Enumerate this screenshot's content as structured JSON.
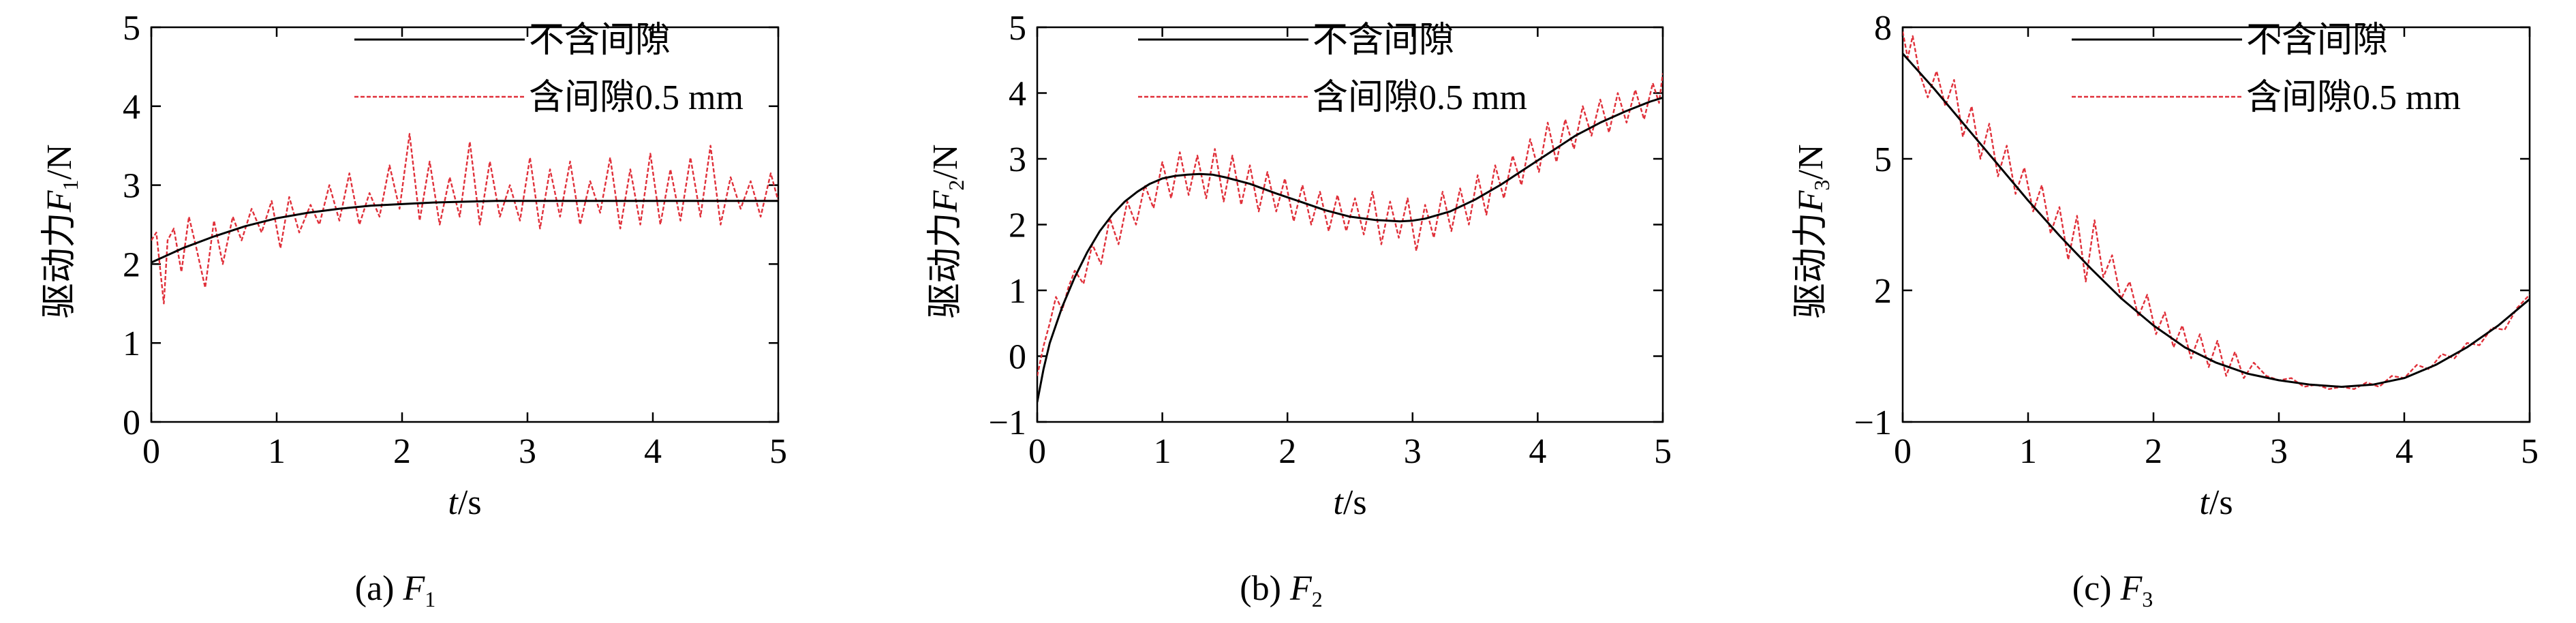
{
  "chart_data": [
    {
      "type": "line",
      "caption": {
        "prefix": "(a)",
        "var": "F",
        "sub": "1"
      },
      "ylabel": {
        "prefix": "驱动力",
        "var": "F",
        "sub": "1",
        "unit": "/N"
      },
      "xlabel": {
        "var": "t",
        "unit": "/s"
      },
      "xlim": [
        0,
        5
      ],
      "ylim": [
        0,
        5
      ],
      "xticks": [
        0,
        1,
        2,
        3,
        4,
        5
      ],
      "xtick_labels": [
        "0",
        "1",
        "2",
        "3",
        "4",
        "5"
      ],
      "yticks": [
        0,
        1,
        2,
        3,
        4,
        5
      ],
      "ytick_labels": [
        "0",
        "1",
        "2",
        "3",
        "4",
        "5"
      ],
      "legend": {
        "entries": [
          "不含间隙",
          "含间隙0.5 mm"
        ]
      },
      "series": [
        {
          "name": "不含间隙",
          "color": "#000000",
          "style": "solid",
          "x": [
            0,
            0.25,
            0.5,
            0.75,
            1,
            1.25,
            1.5,
            1.75,
            2,
            2.25,
            2.5,
            2.75,
            3,
            3.25,
            3.5,
            3.75,
            4,
            4.25,
            4.5,
            4.75,
            5
          ],
          "y": [
            2.02,
            2.2,
            2.35,
            2.48,
            2.58,
            2.65,
            2.7,
            2.74,
            2.76,
            2.78,
            2.79,
            2.8,
            2.8,
            2.8,
            2.8,
            2.8,
            2.8,
            2.8,
            2.8,
            2.8,
            2.8
          ]
        },
        {
          "name": "含间隙0.5 mm",
          "color": "#e0303a",
          "style": "dotted",
          "x": [
            0,
            0.04,
            0.1,
            0.13,
            0.18,
            0.24,
            0.3,
            0.36,
            0.43,
            0.5,
            0.57,
            0.65,
            0.72,
            0.8,
            0.88,
            0.96,
            1.03,
            1.1,
            1.18,
            1.27,
            1.34,
            1.42,
            1.5,
            1.58,
            1.66,
            1.74,
            1.82,
            1.9,
            1.98,
            2.06,
            2.14,
            2.22,
            2.3,
            2.38,
            2.46,
            2.54,
            2.62,
            2.7,
            2.78,
            2.86,
            2.94,
            3.02,
            3.1,
            3.18,
            3.26,
            3.34,
            3.42,
            3.5,
            3.58,
            3.66,
            3.74,
            3.82,
            3.9,
            3.98,
            4.06,
            4.14,
            4.22,
            4.3,
            4.38,
            4.46,
            4.54,
            4.62,
            4.7,
            4.78,
            4.86,
            4.94,
            5
          ],
          "y": [
            2.3,
            2.4,
            1.5,
            2.3,
            2.45,
            1.9,
            2.6,
            2.2,
            1.7,
            2.55,
            2.0,
            2.6,
            2.3,
            2.7,
            2.4,
            2.8,
            2.2,
            2.85,
            2.4,
            2.75,
            2.5,
            3.0,
            2.55,
            3.15,
            2.5,
            2.9,
            2.6,
            3.25,
            2.7,
            3.65,
            2.55,
            3.3,
            2.5,
            3.1,
            2.6,
            3.55,
            2.5,
            3.3,
            2.6,
            3.0,
            2.55,
            3.35,
            2.45,
            3.2,
            2.6,
            3.3,
            2.5,
            3.05,
            2.65,
            3.35,
            2.45,
            3.2,
            2.5,
            3.4,
            2.5,
            3.2,
            2.55,
            3.35,
            2.6,
            3.5,
            2.5,
            3.1,
            2.7,
            3.05,
            2.6,
            3.15,
            2.8
          ]
        }
      ]
    },
    {
      "type": "line",
      "caption": {
        "prefix": "(b)",
        "var": "F",
        "sub": "2"
      },
      "ylabel": {
        "prefix": "驱动力",
        "var": "F",
        "sub": "2",
        "unit": "/N"
      },
      "xlabel": {
        "var": "t",
        "unit": "/s"
      },
      "xlim": [
        0,
        5
      ],
      "ylim": [
        -1,
        5
      ],
      "xticks": [
        0,
        1,
        2,
        3,
        4,
        5
      ],
      "xtick_labels": [
        "0",
        "1",
        "2",
        "3",
        "4",
        "5"
      ],
      "yticks": [
        -1,
        0,
        1,
        2,
        3,
        4,
        5
      ],
      "ytick_labels": [
        "−1",
        "0",
        "1",
        "2",
        "3",
        "4",
        "5"
      ],
      "legend": {
        "entries": [
          "不含间隙",
          "含间隙0.5 mm"
        ]
      },
      "series": [
        {
          "name": "不含间隙",
          "color": "#000000",
          "style": "solid",
          "x": [
            0,
            0.05,
            0.1,
            0.2,
            0.3,
            0.4,
            0.5,
            0.6,
            0.7,
            0.8,
            0.9,
            1.0,
            1.1,
            1.2,
            1.3,
            1.4,
            1.5,
            1.7,
            1.9,
            2.1,
            2.3,
            2.5,
            2.7,
            2.9,
            3.0,
            3.1,
            3.3,
            3.5,
            3.7,
            3.9,
            4.1,
            4.3,
            4.5,
            4.7,
            4.9,
            5.0
          ],
          "y": [
            -0.7,
            -0.2,
            0.2,
            0.75,
            1.2,
            1.58,
            1.9,
            2.15,
            2.35,
            2.5,
            2.62,
            2.7,
            2.74,
            2.76,
            2.77,
            2.76,
            2.72,
            2.62,
            2.48,
            2.35,
            2.22,
            2.12,
            2.07,
            2.05,
            2.06,
            2.09,
            2.2,
            2.38,
            2.6,
            2.85,
            3.1,
            3.35,
            3.55,
            3.72,
            3.87,
            3.93
          ]
        },
        {
          "name": "含间隙0.5 mm",
          "color": "#e0303a",
          "style": "dotted",
          "x": [
            0,
            0.05,
            0.1,
            0.15,
            0.2,
            0.25,
            0.3,
            0.37,
            0.44,
            0.51,
            0.58,
            0.65,
            0.72,
            0.79,
            0.86,
            0.93,
            1.0,
            1.07,
            1.14,
            1.21,
            1.28,
            1.35,
            1.42,
            1.49,
            1.56,
            1.63,
            1.7,
            1.77,
            1.84,
            1.91,
            1.98,
            2.05,
            2.12,
            2.19,
            2.26,
            2.33,
            2.4,
            2.47,
            2.54,
            2.61,
            2.68,
            2.75,
            2.82,
            2.89,
            2.96,
            3.03,
            3.1,
            3.17,
            3.24,
            3.31,
            3.38,
            3.45,
            3.52,
            3.59,
            3.66,
            3.73,
            3.8,
            3.87,
            3.94,
            4.01,
            4.08,
            4.15,
            4.22,
            4.29,
            4.36,
            4.43,
            4.5,
            4.57,
            4.64,
            4.71,
            4.78,
            4.85,
            4.92,
            4.97,
            5.0
          ],
          "y": [
            -0.3,
            0.15,
            0.5,
            0.9,
            0.7,
            1.05,
            1.3,
            1.1,
            1.7,
            1.4,
            2.1,
            1.7,
            2.35,
            2.0,
            2.6,
            2.25,
            2.95,
            2.4,
            3.1,
            2.45,
            3.05,
            2.4,
            3.15,
            2.35,
            3.05,
            2.3,
            2.9,
            2.2,
            2.8,
            2.2,
            2.7,
            2.05,
            2.6,
            2.0,
            2.5,
            1.9,
            2.45,
            1.9,
            2.4,
            1.85,
            2.5,
            1.7,
            2.35,
            1.8,
            2.4,
            1.6,
            2.3,
            1.8,
            2.5,
            1.9,
            2.55,
            2.0,
            2.75,
            2.15,
            2.9,
            2.4,
            3.05,
            2.6,
            3.3,
            2.8,
            3.55,
            2.95,
            3.6,
            3.15,
            3.8,
            3.35,
            3.9,
            3.4,
            4.0,
            3.55,
            4.05,
            3.6,
            4.15,
            3.85,
            4.3
          ]
        }
      ]
    },
    {
      "type": "line",
      "caption": {
        "prefix": "(c)",
        "var": "F",
        "sub": "3"
      },
      "ylabel": {
        "prefix": "驱动力",
        "var": "F",
        "sub": "3",
        "unit": "/N"
      },
      "xlabel": {
        "var": "t",
        "unit": "/s"
      },
      "xlim": [
        0,
        5
      ],
      "ylim": [
        -1,
        8
      ],
      "xticks": [
        0,
        1,
        2,
        3,
        4,
        5
      ],
      "xtick_labels": [
        "0",
        "1",
        "2",
        "3",
        "4",
        "5"
      ],
      "yticks": [
        -1,
        2,
        5,
        8
      ],
      "ytick_labels": [
        "−1",
        "2",
        "5",
        "8"
      ],
      "legend": {
        "entries": [
          "不含间隙",
          "含间隙0.5 mm"
        ]
      },
      "series": [
        {
          "name": "不含间隙",
          "color": "#000000",
          "style": "solid",
          "x": [
            0,
            0.25,
            0.5,
            0.75,
            1.0,
            1.25,
            1.5,
            1.75,
            2.0,
            2.25,
            2.5,
            2.75,
            3.0,
            3.25,
            3.5,
            3.75,
            4.0,
            4.25,
            4.5,
            4.75,
            5.0
          ],
          "y": [
            7.4,
            6.6,
            5.75,
            4.9,
            4.05,
            3.25,
            2.5,
            1.8,
            1.2,
            0.7,
            0.35,
            0.1,
            -0.05,
            -0.15,
            -0.2,
            -0.15,
            0.0,
            0.3,
            0.7,
            1.2,
            1.8
          ]
        },
        {
          "name": "含间隙0.5 mm",
          "color": "#e0303a",
          "style": "dotted",
          "x": [
            0,
            0.04,
            0.08,
            0.13,
            0.2,
            0.27,
            0.34,
            0.41,
            0.48,
            0.55,
            0.62,
            0.69,
            0.76,
            0.83,
            0.9,
            0.97,
            1.04,
            1.11,
            1.18,
            1.25,
            1.32,
            1.39,
            1.46,
            1.53,
            1.6,
            1.67,
            1.74,
            1.81,
            1.88,
            1.95,
            2.02,
            2.09,
            2.16,
            2.23,
            2.3,
            2.37,
            2.44,
            2.51,
            2.58,
            2.65,
            2.72,
            2.8,
            2.9,
            3.0,
            3.1,
            3.2,
            3.3,
            3.4,
            3.5,
            3.6,
            3.7,
            3.8,
            3.9,
            4.0,
            4.1,
            4.2,
            4.3,
            4.4,
            4.5,
            4.6,
            4.7,
            4.8,
            4.9,
            5.0
          ],
          "y": [
            7.9,
            7.3,
            7.8,
            7.0,
            6.4,
            7.0,
            6.2,
            6.8,
            5.5,
            6.2,
            5.0,
            5.8,
            4.6,
            5.3,
            4.2,
            4.8,
            3.8,
            4.4,
            3.3,
            3.9,
            2.7,
            3.7,
            2.2,
            3.6,
            2.3,
            2.8,
            1.8,
            2.2,
            1.4,
            1.9,
            1.0,
            1.5,
            0.7,
            1.2,
            0.45,
            1.0,
            0.25,
            0.85,
            0.05,
            0.6,
            0.0,
            0.35,
            0.05,
            -0.05,
            0.0,
            -0.2,
            -0.15,
            -0.25,
            -0.2,
            -0.25,
            -0.1,
            -0.2,
            0.05,
            0.0,
            0.3,
            0.2,
            0.55,
            0.45,
            0.8,
            0.75,
            1.15,
            1.1,
            1.6,
            1.9
          ]
        }
      ]
    }
  ]
}
